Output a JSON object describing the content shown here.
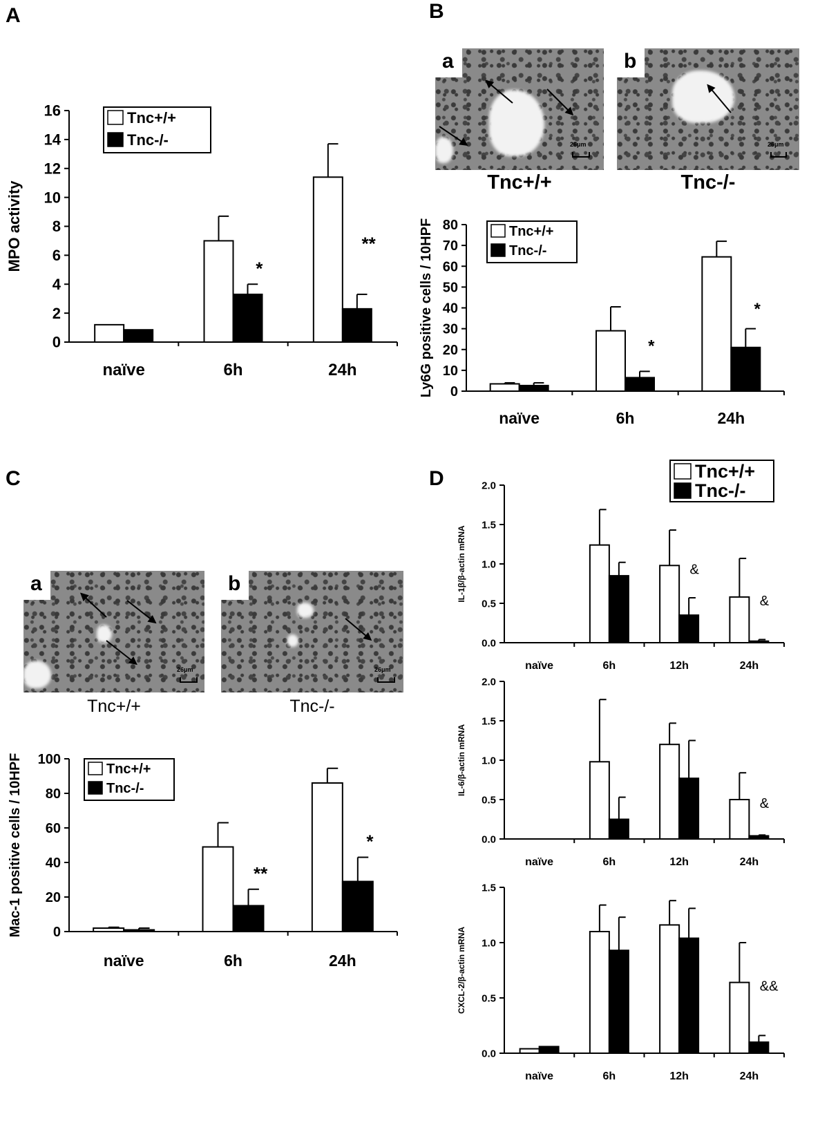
{
  "panels": {
    "A": "A",
    "B": "B",
    "C": "C",
    "D": "D"
  },
  "micrographs": {
    "B": {
      "a_tag": "a",
      "b_tag": "b",
      "scale_label": "26μm",
      "a_caption": "Tnc+/+",
      "b_caption": "Tnc-/-"
    },
    "C": {
      "a_tag": "a",
      "b_tag": "b",
      "scale_label": "26μm",
      "a_caption": "Tnc+/+",
      "b_caption": "Tnc-/-"
    }
  },
  "colors": {
    "wildtype_fill": "#ffffff",
    "knockout_fill": "#000000",
    "axis": "#000000"
  },
  "chart_data": [
    {
      "id": "A",
      "type": "bar",
      "categories": [
        "naïve",
        "6h",
        "24h"
      ],
      "series": [
        {
          "name": "Tnc+/+",
          "values": [
            1.2,
            7.0,
            11.4
          ],
          "errors": [
            0,
            1.7,
            2.3
          ]
        },
        {
          "name": "Tnc-/-",
          "values": [
            0.85,
            3.3,
            2.3
          ],
          "errors": [
            0,
            0.7,
            1.0
          ]
        }
      ],
      "annotations": [
        "",
        "*",
        "**"
      ],
      "ylabel": "MPO activity",
      "ylim": [
        0,
        16
      ],
      "yticks": [
        "0",
        "2",
        "4",
        "6",
        "8",
        "10",
        "12",
        "14",
        "16"
      ],
      "legend": "top-left"
    },
    {
      "id": "B",
      "type": "bar",
      "categories": [
        "naïve",
        "6h",
        "24h"
      ],
      "series": [
        {
          "name": "Tnc+/+",
          "values": [
            3.5,
            29,
            64.5
          ],
          "errors": [
            0.5,
            11.5,
            7.5
          ]
        },
        {
          "name": "Tnc-/-",
          "values": [
            2.7,
            6.5,
            21
          ],
          "errors": [
            1.3,
            3,
            9
          ]
        }
      ],
      "annotations": [
        "",
        "*",
        "*"
      ],
      "ylabel": "Ly6G positive cells / 10HPF",
      "ylim": [
        0,
        80
      ],
      "yticks": [
        "0",
        "10",
        "20",
        "30",
        "40",
        "50",
        "60",
        "70",
        "80"
      ],
      "legend": "top-left"
    },
    {
      "id": "C",
      "type": "bar",
      "categories": [
        "naïve",
        "6h",
        "24h"
      ],
      "series": [
        {
          "name": "Tnc+/+",
          "values": [
            2,
            49,
            86
          ],
          "errors": [
            0.5,
            14,
            8.5
          ]
        },
        {
          "name": "Tnc-/-",
          "values": [
            1,
            15,
            29
          ],
          "errors": [
            1,
            9.5,
            14
          ]
        }
      ],
      "annotations": [
        "",
        "**",
        "*"
      ],
      "ylabel": "Mac-1 positive cells / 10HPF",
      "ylim": [
        0,
        100
      ],
      "yticks": [
        "0",
        "20",
        "40",
        "60",
        "80",
        "100"
      ],
      "legend": "top-left"
    },
    {
      "id": "D1",
      "type": "bar",
      "categories": [
        "naïve",
        "6h",
        "12h",
        "24h"
      ],
      "series": [
        {
          "name": "Tnc+/+",
          "values": [
            0,
            1.24,
            0.98,
            0.58
          ],
          "errors": [
            0,
            0.45,
            0.45,
            0.49
          ]
        },
        {
          "name": "Tnc-/-",
          "values": [
            0,
            0.85,
            0.35,
            0.02
          ],
          "errors": [
            0,
            0.17,
            0.22,
            0.02
          ]
        }
      ],
      "annotations": [
        "",
        "",
        "&",
        "&"
      ],
      "ylabel": "IL-1β/β-actin mRNA",
      "ylim": [
        0,
        2.0
      ],
      "yticks": [
        "0.0",
        "0.5",
        "1.0",
        "1.5",
        "2.0"
      ],
      "legend": "top-right"
    },
    {
      "id": "D2",
      "type": "bar",
      "categories": [
        "naïve",
        "6h",
        "12h",
        "24h"
      ],
      "series": [
        {
          "name": "Tnc+/+",
          "values": [
            0,
            0.98,
            1.2,
            0.5
          ],
          "errors": [
            0,
            0.79,
            0.27,
            0.34
          ]
        },
        {
          "name": "Tnc-/-",
          "values": [
            0,
            0.25,
            0.77,
            0.04
          ],
          "errors": [
            0,
            0.28,
            0.48,
            0.01
          ]
        }
      ],
      "annotations": [
        "",
        "",
        "",
        "&"
      ],
      "ylabel": "IL-6/β-actin mRNA",
      "ylim": [
        0,
        2.0
      ],
      "yticks": [
        "0.0",
        "0.5",
        "1.0",
        "1.5",
        "2.0"
      ]
    },
    {
      "id": "D3",
      "type": "bar",
      "categories": [
        "naïve",
        "6h",
        "12h",
        "24h"
      ],
      "series": [
        {
          "name": "Tnc+/+",
          "values": [
            0.04,
            1.1,
            1.16,
            0.64
          ],
          "errors": [
            0,
            0.24,
            0.22,
            0.36
          ]
        },
        {
          "name": "Tnc-/-",
          "values": [
            0.06,
            0.93,
            1.04,
            0.1
          ],
          "errors": [
            0,
            0.3,
            0.27,
            0.06
          ]
        }
      ],
      "annotations": [
        "",
        "",
        "",
        "&&"
      ],
      "ylabel": "CXCL-2/β-actin mRNA",
      "ylim": [
        0,
        1.5
      ],
      "yticks": [
        "0.0",
        "0.5",
        "1.0",
        "1.5"
      ]
    }
  ]
}
